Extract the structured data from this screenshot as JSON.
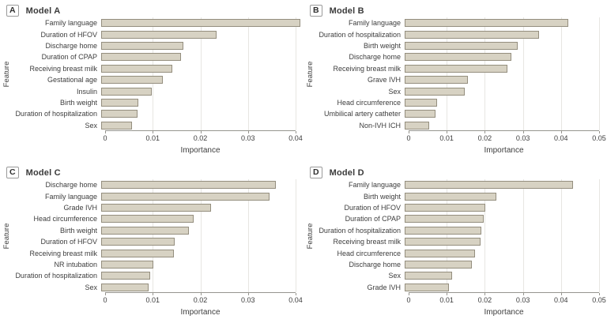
{
  "figure": {
    "ylabel": "Feature",
    "xlabel": "Importance",
    "colors": {
      "bar_fill": "#d7d2c3",
      "bar_border": "#948e7e",
      "gridline": "#e7e6e2",
      "axis": "#96958f",
      "text": "#3d3d3d"
    }
  },
  "chart_data": [
    {
      "type": "bar",
      "orientation": "horizontal",
      "panel_label": "A",
      "title": "Model A",
      "xlabel": "Importance",
      "ylabel": "Feature",
      "xlim": [
        0,
        0.04
      ],
      "grid": true,
      "xtick_values": [
        0,
        0.01,
        0.02,
        0.03,
        0.04
      ],
      "xtick_labels": [
        "0",
        "0.01",
        "0.02",
        "0.03",
        "0.04"
      ],
      "categories": [
        "Family language",
        "Duration of HFOV",
        "Discharge home",
        "Duration of CPAP",
        "Receiving breast milk",
        "Gestational age",
        "Insulin",
        "Birth weight",
        "Duration of hospitalization",
        "Sex"
      ],
      "values": [
        0.041,
        0.0237,
        0.0169,
        0.0165,
        0.0146,
        0.0127,
        0.0104,
        0.0076,
        0.0074,
        0.0063
      ]
    },
    {
      "type": "bar",
      "orientation": "horizontal",
      "panel_label": "B",
      "title": "Model B",
      "xlabel": "Importance",
      "ylabel": "Feature",
      "xlim": [
        0,
        0.05
      ],
      "grid": true,
      "xtick_values": [
        0,
        0.01,
        0.02,
        0.03,
        0.04,
        0.05
      ],
      "xtick_labels": [
        "0",
        "0.01",
        "0.02",
        "0.03",
        "0.04",
        "0.05"
      ],
      "categories": [
        "Family language",
        "Duration of hospitalization",
        "Birth weight",
        "Discharge home",
        "Receiving breast milk",
        "Grave IVH",
        "Sex",
        "Head circumference",
        "Umbilical artery catheter",
        "Non-IVH ICH"
      ],
      "values": [
        0.042,
        0.0345,
        0.029,
        0.0275,
        0.0265,
        0.0163,
        0.0154,
        0.0083,
        0.008,
        0.0064
      ]
    },
    {
      "type": "bar",
      "orientation": "horizontal",
      "panel_label": "C",
      "title": "Model C",
      "xlabel": "Importance",
      "ylabel": "Feature",
      "xlim": [
        0,
        0.04
      ],
      "grid": true,
      "xtick_values": [
        0,
        0.01,
        0.02,
        0.03,
        0.04
      ],
      "xtick_labels": [
        "0",
        "0.01",
        "0.02",
        "0.03",
        "0.04"
      ],
      "categories": [
        "Discharge home",
        "Family language",
        "Grade IVH",
        "Head circumference",
        "Birth weight",
        "Duration of HFOV",
        "Receiving breast milk",
        "NR intubation",
        "Duration of hospitalization",
        "Sex"
      ],
      "values": [
        0.0359,
        0.0346,
        0.0226,
        0.019,
        0.0181,
        0.0152,
        0.015,
        0.0108,
        0.01,
        0.0097
      ]
    },
    {
      "type": "bar",
      "orientation": "horizontal",
      "panel_label": "D",
      "title": "Model D",
      "xlabel": "Importance",
      "ylabel": "Feature",
      "xlim": [
        0,
        0.05
      ],
      "grid": true,
      "xtick_values": [
        0,
        0.01,
        0.02,
        0.03,
        0.04,
        0.05
      ],
      "xtick_labels": [
        "0",
        "0.01",
        "0.02",
        "0.03",
        "0.04",
        "0.05"
      ],
      "categories": [
        "Family language",
        "Birth weight",
        "Duration of HFOV",
        "Duration of CPAP",
        "Duration of hospitalization",
        "Receiving breast milk",
        "Head circumference",
        "Discharge home",
        "Sex",
        "Grade IVH"
      ],
      "values": [
        0.0432,
        0.0235,
        0.0208,
        0.0204,
        0.0197,
        0.0195,
        0.0181,
        0.0172,
        0.0121,
        0.0114
      ]
    }
  ]
}
